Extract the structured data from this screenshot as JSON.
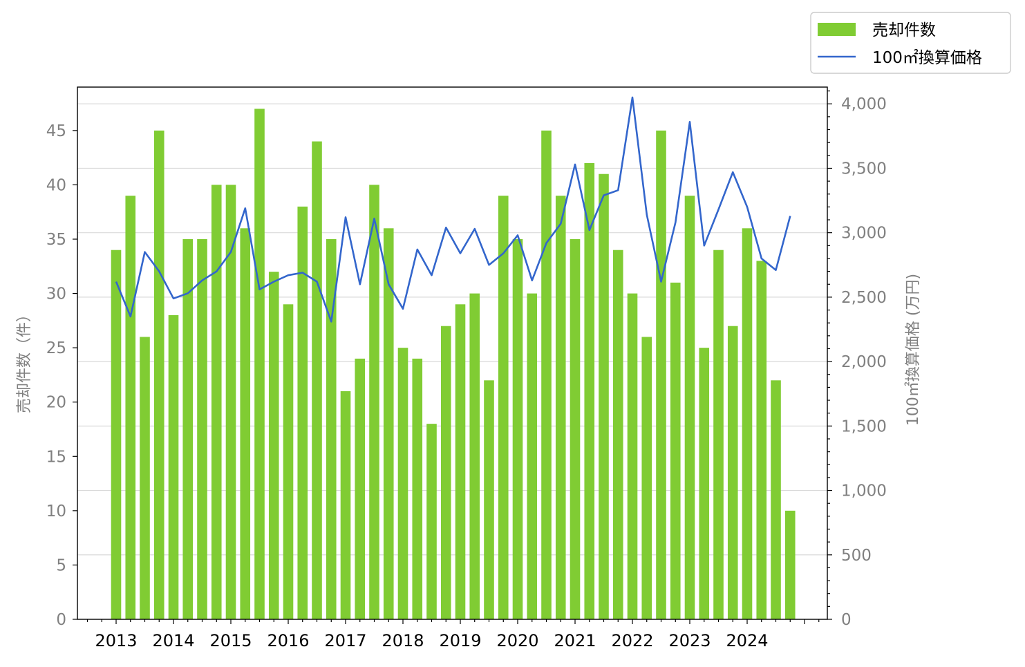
{
  "chart_data": {
    "type": "bar+line",
    "categories": [
      "2013Q1",
      "2013Q2",
      "2013Q3",
      "2013Q4",
      "2014Q1",
      "2014Q2",
      "2014Q3",
      "2014Q4",
      "2015Q1",
      "2015Q2",
      "2015Q3",
      "2015Q4",
      "2016Q1",
      "2016Q2",
      "2016Q3",
      "2016Q4",
      "2017Q1",
      "2017Q2",
      "2017Q3",
      "2017Q4",
      "2018Q1",
      "2018Q2",
      "2018Q3",
      "2018Q4",
      "2019Q1",
      "2019Q2",
      "2019Q3",
      "2019Q4",
      "2020Q1",
      "2020Q2",
      "2020Q3",
      "2020Q4",
      "2021Q1",
      "2021Q2",
      "2021Q3",
      "2021Q4",
      "2022Q1",
      "2022Q2",
      "2022Q3",
      "2022Q4",
      "2023Q1",
      "2023Q2",
      "2023Q3",
      "2023Q4",
      "2024Q1",
      "2024Q2",
      "2024Q3",
      "2024Q4"
    ],
    "x_tick_labels": [
      "2013",
      "2014",
      "2015",
      "2016",
      "2017",
      "2018",
      "2019",
      "2020",
      "2021",
      "2022",
      "2023",
      "2024"
    ],
    "series": [
      {
        "name": "売却件数",
        "kind": "bar",
        "axis": "left",
        "color": "#80cc33",
        "values": [
          34,
          39,
          26,
          45,
          28,
          35,
          35,
          40,
          40,
          36,
          47,
          32,
          29,
          38,
          44,
          35,
          21,
          24,
          40,
          36,
          25,
          24,
          18,
          27,
          29,
          30,
          22,
          39,
          35,
          30,
          45,
          39,
          35,
          42,
          41,
          34,
          30,
          26,
          45,
          31,
          39,
          25,
          34,
          27,
          36,
          33,
          22,
          10
        ]
      },
      {
        "name": "100㎡換算価格",
        "kind": "line",
        "axis": "right",
        "color": "#3366cc",
        "values": [
          2620,
          2350,
          2850,
          2700,
          2490,
          2530,
          2630,
          2700,
          2850,
          3190,
          2560,
          2620,
          2670,
          2690,
          2620,
          2310,
          3120,
          2600,
          3110,
          2600,
          2410,
          2870,
          2670,
          3040,
          2840,
          3030,
          2750,
          2840,
          2980,
          2630,
          2920,
          3070,
          3530,
          3020,
          3290,
          3330,
          4050,
          3140,
          2620,
          3080,
          3860,
          2900,
          3180,
          3470,
          3200,
          2800,
          2710,
          3130
        ]
      }
    ],
    "left_axis": {
      "label": "売却件数（件）",
      "ylim": [
        0,
        49
      ],
      "ticks": [
        0,
        5,
        10,
        15,
        20,
        25,
        30,
        35,
        40,
        45
      ]
    },
    "right_axis": {
      "label": "100㎡換算価格 (万円)",
      "ylim": [
        0,
        4130
      ],
      "ticks": [
        0,
        500,
        1000,
        1500,
        2000,
        2500,
        3000,
        3500,
        4000
      ],
      "tick_labels": [
        "0",
        "500",
        "1,000",
        "1,500",
        "2,000",
        "2,500",
        "3,000",
        "3,500",
        "4,000"
      ]
    },
    "grid": "horizontal, right axis",
    "legend": {
      "placement": "top-right",
      "entries": [
        "売却件数",
        "100㎡換算価格"
      ]
    }
  }
}
